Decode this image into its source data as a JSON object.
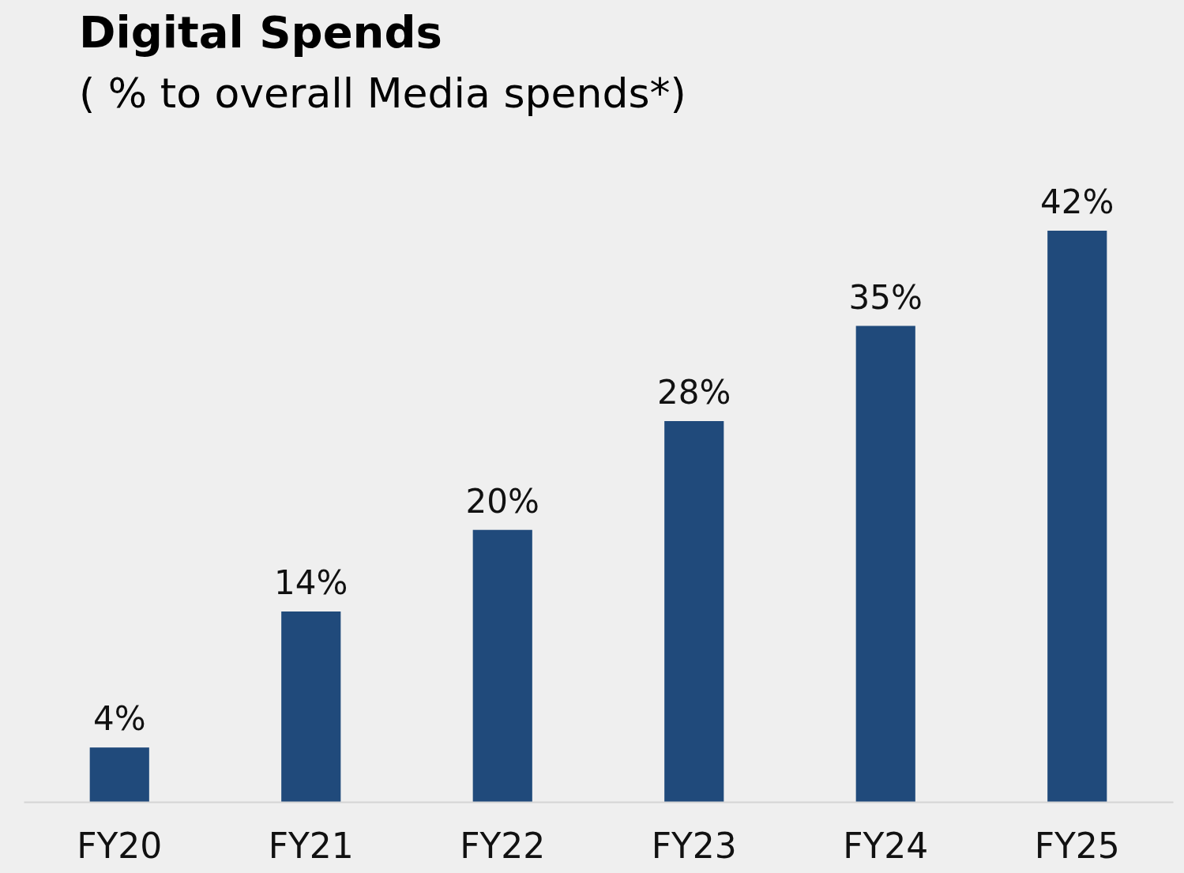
{
  "chart_data": {
    "type": "bar",
    "title": "Digital Spends",
    "subtitle": "( % to overall Media spends*)",
    "categories": [
      "FY20",
      "FY21",
      "FY22",
      "FY23",
      "FY24",
      "FY25"
    ],
    "values": [
      4,
      14,
      20,
      28,
      35,
      42
    ],
    "value_labels": [
      "4%",
      "14%",
      "20%",
      "28%",
      "35%",
      "42%"
    ],
    "color": "#204a7b"
  }
}
